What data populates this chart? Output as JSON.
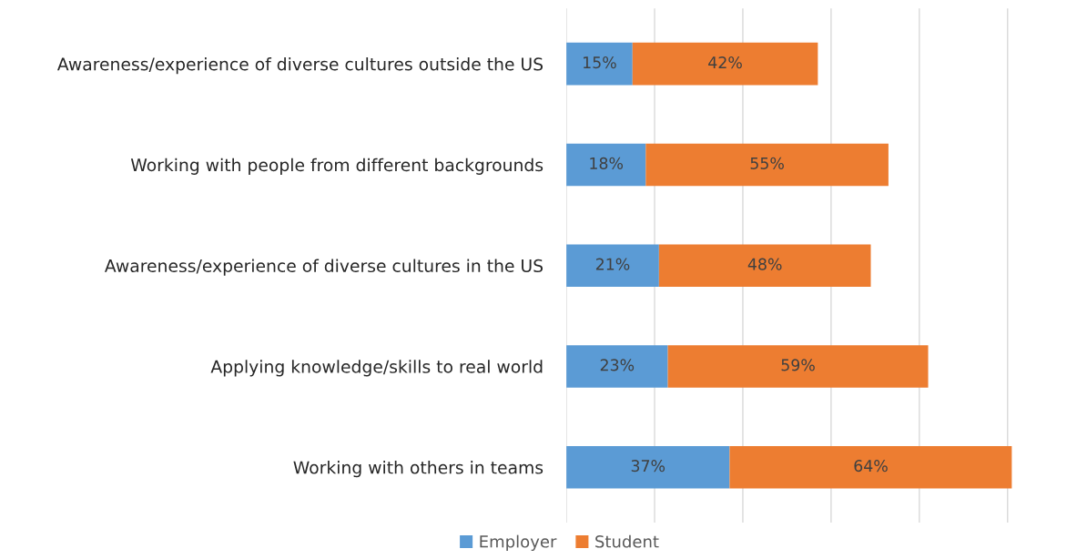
{
  "chart_data": {
    "type": "bar",
    "orientation": "horizontal",
    "stacked": true,
    "categories": [
      "Awareness/experience of diverse cultures outside the US",
      "Working with people from different backgrounds",
      "Awareness/experience of diverse cultures in the US",
      "Applying knowledge/skills to real world",
      "Working with others in teams"
    ],
    "series": [
      {
        "name": "Employer",
        "color": "#5b9bd5",
        "values": [
          15,
          18,
          21,
          23,
          37
        ],
        "value_labels": [
          "15%",
          "18%",
          "21%",
          "23%",
          "37%"
        ]
      },
      {
        "name": "Student",
        "color": "#ed7d31",
        "values": [
          42,
          55,
          48,
          59,
          64
        ],
        "value_labels": [
          "42%",
          "55%",
          "48%",
          "59%",
          "64%"
        ]
      }
    ],
    "xlim": [
      0,
      101
    ],
    "xticks": [
      {
        "value": 0,
        "label": null
      },
      {
        "value": 20,
        "label": null
      },
      {
        "value": 40,
        "label": null
      },
      {
        "value": 60,
        "label": null
      },
      {
        "value": 80,
        "label": null
      },
      {
        "value": 100,
        "label": null
      }
    ],
    "tick_labels": "y",
    "grid": "x",
    "legend": "bottom"
  }
}
